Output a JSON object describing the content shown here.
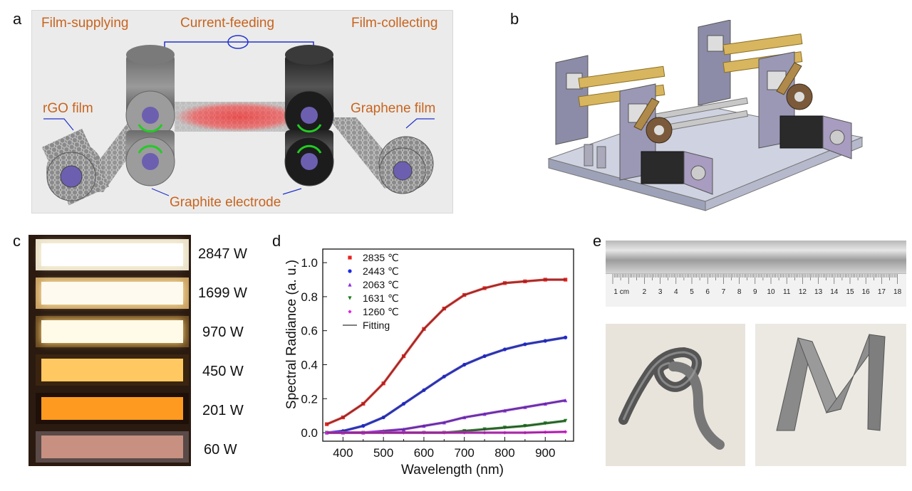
{
  "panels": {
    "a": {
      "letter": "a",
      "labels": {
        "film_supplying": "Film-supplying",
        "current_feeding": "Current-feeding",
        "film_collecting": "Film-collecting",
        "rgo_film": "rGO film",
        "graphene_film": "Graphene film",
        "graphite_electrode": "Graphite electrode"
      }
    },
    "b": {
      "letter": "b"
    },
    "c": {
      "letter": "c",
      "powers": [
        "2847 W",
        "1699 W",
        "970 W",
        "450 W",
        "201 W",
        "60 W"
      ]
    },
    "d": {
      "letter": "d"
    },
    "e": {
      "letter": "e",
      "ruler_ticks": [
        "1 cm",
        "2",
        "3",
        "4",
        "5",
        "6",
        "7",
        "8",
        "9",
        "10",
        "11",
        "12",
        "13",
        "14",
        "15",
        "16",
        "17",
        "18"
      ]
    }
  },
  "chart_data": {
    "type": "scatter",
    "xlabel": "Wavelength (nm)",
    "ylabel": "Spectral Radiance (a. u.)",
    "xlim": [
      350,
      970
    ],
    "ylim": [
      -0.05,
      1.08
    ],
    "xticks": [
      400,
      500,
      600,
      700,
      800,
      900
    ],
    "yticks": [
      "0.0",
      "0.2",
      "0.4",
      "0.6",
      "0.8",
      "1.0"
    ],
    "legend_position": "top-left",
    "x": [
      360,
      400,
      450,
      500,
      550,
      600,
      650,
      700,
      750,
      800,
      850,
      900,
      950
    ],
    "series": [
      {
        "name": "2835 ℃",
        "marker": "square",
        "color": "#e8231e",
        "values": [
          0.05,
          0.09,
          0.17,
          0.29,
          0.45,
          0.61,
          0.73,
          0.81,
          0.85,
          0.88,
          0.89,
          0.9,
          0.9
        ]
      },
      {
        "name": "2443 ℃",
        "marker": "circle",
        "color": "#1e28e6",
        "values": [
          0.0,
          0.01,
          0.04,
          0.09,
          0.17,
          0.25,
          0.33,
          0.4,
          0.45,
          0.49,
          0.52,
          0.54,
          0.56
        ]
      },
      {
        "name": "2063 ℃",
        "marker": "triangle-up",
        "color": "#8a2be2",
        "values": [
          0.0,
          0.0,
          0.0,
          0.01,
          0.02,
          0.04,
          0.06,
          0.09,
          0.11,
          0.13,
          0.15,
          0.17,
          0.19
        ]
      },
      {
        "name": "1631 ℃",
        "marker": "triangle-down",
        "color": "#1e7a1e",
        "values": [
          0.0,
          0.0,
          0.0,
          0.0,
          0.0,
          0.0,
          0.0,
          0.01,
          0.02,
          0.03,
          0.04,
          0.055,
          0.07
        ]
      },
      {
        "name": "1260 ℃",
        "marker": "diamond",
        "color": "#e020e0",
        "values": [
          0.0,
          0.0,
          0.0,
          0.0,
          0.0,
          0.0,
          0.0,
          0.0,
          0.0,
          0.0,
          0.0,
          0.003,
          0.005
        ]
      }
    ],
    "fit_line": {
      "name": "Fitting",
      "color": "#333333"
    }
  }
}
